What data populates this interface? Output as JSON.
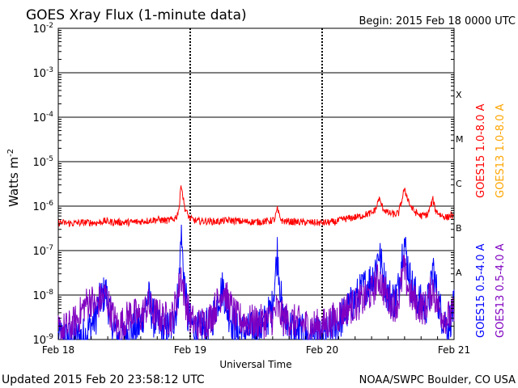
{
  "chart_data": {
    "type": "line",
    "title": "GOES Xray Flux (1-minute data)",
    "begin_label": "Begin:  2015 Feb 18 0000 UTC",
    "xlabel": "Universal Time",
    "ylabel": "Watts m",
    "ylabel_superscript": "-2",
    "y_scale": "log",
    "ylim": [
      1e-09,
      0.01
    ],
    "y_ticks": [
      {
        "value": 1e-09,
        "base": "10",
        "exp": "-9"
      },
      {
        "value": 1e-08,
        "base": "10",
        "exp": "-8"
      },
      {
        "value": 1e-07,
        "base": "10",
        "exp": "-7"
      },
      {
        "value": 1e-06,
        "base": "10",
        "exp": "-6"
      },
      {
        "value": 1e-05,
        "base": "10",
        "exp": "-5"
      },
      {
        "value": 0.0001,
        "base": "10",
        "exp": "-4"
      },
      {
        "value": 0.001,
        "base": "10",
        "exp": "-3"
      },
      {
        "value": 0.01,
        "base": "10",
        "exp": "-2"
      }
    ],
    "x_range_days": [
      0,
      3
    ],
    "x_ticks": [
      {
        "day": 0,
        "label": "Feb 18"
      },
      {
        "day": 1,
        "label": "Feb 19"
      },
      {
        "day": 2,
        "label": "Feb 20"
      },
      {
        "day": 3,
        "label": "Feb 21"
      }
    ],
    "class_labels": [
      {
        "label": "X",
        "value": 0.00032
      },
      {
        "label": "M",
        "value": 3.2e-05
      },
      {
        "label": "C",
        "value": 3.2e-06
      },
      {
        "label": "B",
        "value": 3.2e-07
      },
      {
        "label": "A",
        "value": 3.2e-08
      }
    ],
    "series": [
      {
        "name": "GOES15 1.0-8.0 A",
        "color": "#ff0000",
        "noise": 0.08,
        "min": 3e-07,
        "points": [
          [
            0.0,
            4.3e-07
          ],
          [
            0.1,
            4.1e-07
          ],
          [
            0.2,
            4.3e-07
          ],
          [
            0.3,
            4.2e-07
          ],
          [
            0.35,
            4.6e-07
          ],
          [
            0.4,
            4.4e-07
          ],
          [
            0.5,
            4.3e-07
          ],
          [
            0.6,
            4.4e-07
          ],
          [
            0.7,
            4.8e-07
          ],
          [
            0.75,
            5e-07
          ],
          [
            0.82,
            4.7e-07
          ],
          [
            0.87,
            5e-07
          ],
          [
            0.9,
            6e-07
          ],
          [
            0.92,
            1.1e-06
          ],
          [
            0.93,
            3.5e-06
          ],
          [
            0.945,
            1.6e-06
          ],
          [
            0.96,
            9e-07
          ],
          [
            0.98,
            6.5e-07
          ],
          [
            1.0,
            5.2e-07
          ],
          [
            1.05,
            4.6e-07
          ],
          [
            1.1,
            4.6e-07
          ],
          [
            1.2,
            4.5e-07
          ],
          [
            1.3,
            4.8e-07
          ],
          [
            1.4,
            4.5e-07
          ],
          [
            1.5,
            4.4e-07
          ],
          [
            1.6,
            4.6e-07
          ],
          [
            1.64,
            5e-07
          ],
          [
            1.66,
            8.5e-07
          ],
          [
            1.68,
            5.5e-07
          ],
          [
            1.7,
            4.6e-07
          ],
          [
            1.8,
            4.4e-07
          ],
          [
            1.9,
            4.3e-07
          ],
          [
            2.0,
            4.2e-07
          ],
          [
            2.1,
            4.4e-07
          ],
          [
            2.15,
            5e-07
          ],
          [
            2.2,
            5.3e-07
          ],
          [
            2.28,
            5.8e-07
          ],
          [
            2.33,
            6.5e-07
          ],
          [
            2.38,
            7e-07
          ],
          [
            2.41,
            9e-07
          ],
          [
            2.43,
            1.5e-06
          ],
          [
            2.46,
            9e-07
          ],
          [
            2.5,
            7e-07
          ],
          [
            2.55,
            6.5e-07
          ],
          [
            2.58,
            7e-07
          ],
          [
            2.61,
            1.6e-06
          ],
          [
            2.62,
            2.3e-06
          ],
          [
            2.64,
            1.8e-06
          ],
          [
            2.67,
            1e-06
          ],
          [
            2.7,
            7.5e-07
          ],
          [
            2.75,
            6e-07
          ],
          [
            2.8,
            6.5e-07
          ],
          [
            2.84,
            1.4e-06
          ],
          [
            2.86,
            8e-07
          ],
          [
            2.9,
            6.2e-07
          ],
          [
            2.95,
            5.5e-07
          ],
          [
            2.98,
            6.5e-07
          ],
          [
            3.0,
            5e-07
          ]
        ]
      },
      {
        "name": "GOES13 1.0-8.0 A",
        "color": "#ffa500",
        "points": []
      },
      {
        "name": "GOES15 0.5-4.0 A",
        "color": "#0000ff",
        "noise": 0.45,
        "min": 1e-09,
        "points": [
          [
            0.0,
            1.1e-09
          ],
          [
            0.1,
            1e-09
          ],
          [
            0.2,
            1.2e-09
          ],
          [
            0.28,
            3e-09
          ],
          [
            0.32,
            8e-09
          ],
          [
            0.36,
            1.2e-08
          ],
          [
            0.4,
            3e-09
          ],
          [
            0.45,
            1e-09
          ],
          [
            0.55,
            1.5e-09
          ],
          [
            0.62,
            2e-09
          ],
          [
            0.68,
            1e-08
          ],
          [
            0.72,
            3e-09
          ],
          [
            0.8,
            1.5e-09
          ],
          [
            0.86,
            2e-09
          ],
          [
            0.9,
            6e-09
          ],
          [
            0.92,
            3e-08
          ],
          [
            0.93,
            3e-07
          ],
          [
            0.94,
            9e-08
          ],
          [
            0.96,
            1.5e-08
          ],
          [
            0.98,
            3e-09
          ],
          [
            1.05,
            1.5e-09
          ],
          [
            1.15,
            2e-09
          ],
          [
            1.22,
            1e-08
          ],
          [
            1.25,
            1.5e-08
          ],
          [
            1.28,
            5e-09
          ],
          [
            1.35,
            1.5e-09
          ],
          [
            1.45,
            1.5e-09
          ],
          [
            1.55,
            2e-09
          ],
          [
            1.62,
            5e-09
          ],
          [
            1.65,
            4e-08
          ],
          [
            1.66,
            1e-07
          ],
          [
            1.68,
            2e-08
          ],
          [
            1.7,
            3e-09
          ],
          [
            1.8,
            1.5e-09
          ],
          [
            1.9,
            1.2e-09
          ],
          [
            2.0,
            1e-09
          ],
          [
            2.1,
            2e-09
          ],
          [
            2.18,
            4e-09
          ],
          [
            2.25,
            8e-09
          ],
          [
            2.32,
            1.5e-08
          ],
          [
            2.38,
            2.5e-08
          ],
          [
            2.41,
            5e-08
          ],
          [
            2.43,
            1e-07
          ],
          [
            2.46,
            3e-08
          ],
          [
            2.5,
            1e-08
          ],
          [
            2.55,
            8e-09
          ],
          [
            2.58,
            1.5e-08
          ],
          [
            2.6,
            6e-08
          ],
          [
            2.62,
            1.9e-07
          ],
          [
            2.64,
            7e-08
          ],
          [
            2.67,
            2e-08
          ],
          [
            2.72,
            8e-09
          ],
          [
            2.78,
            5e-09
          ],
          [
            2.82,
            1e-08
          ],
          [
            2.84,
            5e-08
          ],
          [
            2.86,
            1.5e-08
          ],
          [
            2.9,
            4e-09
          ],
          [
            2.95,
            2e-09
          ],
          [
            3.0,
            5e-09
          ]
        ]
      },
      {
        "name": "GOES13 0.5-4.0 A",
        "color": "#8000c0",
        "noise": 0.4,
        "min": 1e-09,
        "points": [
          [
            0.0,
            1.5e-09
          ],
          [
            0.1,
            2e-09
          ],
          [
            0.15,
            3e-09
          ],
          [
            0.2,
            6e-09
          ],
          [
            0.25,
            8e-09
          ],
          [
            0.28,
            5e-09
          ],
          [
            0.32,
            8e-09
          ],
          [
            0.36,
            1e-08
          ],
          [
            0.4,
            4e-09
          ],
          [
            0.45,
            2e-09
          ],
          [
            0.5,
            2.5e-09
          ],
          [
            0.55,
            4e-09
          ],
          [
            0.62,
            3e-09
          ],
          [
            0.68,
            6e-09
          ],
          [
            0.72,
            4e-09
          ],
          [
            0.8,
            3e-09
          ],
          [
            0.86,
            3e-09
          ],
          [
            0.9,
            8e-09
          ],
          [
            0.93,
            3e-08
          ],
          [
            0.94,
            2e-08
          ],
          [
            0.96,
            8e-09
          ],
          [
            1.0,
            3e-09
          ],
          [
            1.05,
            2e-09
          ],
          [
            1.15,
            3e-09
          ],
          [
            1.22,
            8e-09
          ],
          [
            1.25,
            1.5e-08
          ],
          [
            1.28,
            8e-09
          ],
          [
            1.35,
            3e-09
          ],
          [
            1.45,
            2.5e-09
          ],
          [
            1.55,
            2.5e-09
          ],
          [
            1.62,
            3e-09
          ],
          [
            1.66,
            5e-09
          ],
          [
            1.7,
            3e-09
          ],
          [
            1.8,
            2.5e-09
          ],
          [
            1.9,
            2e-09
          ],
          [
            2.0,
            2e-09
          ],
          [
            2.1,
            3e-09
          ],
          [
            2.18,
            5e-09
          ],
          [
            2.25,
            6e-09
          ],
          [
            2.32,
            8e-09
          ],
          [
            2.38,
            1.2e-08
          ],
          [
            2.43,
            2.5e-08
          ],
          [
            2.46,
            1.5e-08
          ],
          [
            2.5,
            8e-09
          ],
          [
            2.55,
            6e-09
          ],
          [
            2.58,
            8e-09
          ],
          [
            2.62,
            4e-08
          ],
          [
            2.64,
            2e-08
          ],
          [
            2.67,
            1e-08
          ],
          [
            2.72,
            6e-09
          ],
          [
            2.78,
            5e-09
          ],
          [
            2.84,
            1.5e-08
          ],
          [
            2.86,
            8e-09
          ],
          [
            2.9,
            4e-09
          ],
          [
            2.95,
            3e-09
          ],
          [
            3.0,
            4e-09
          ]
        ]
      }
    ]
  },
  "footer": {
    "updated": "Updated 2015 Feb 20 23:58:12 UTC",
    "credit": "NOAA/SWPC Boulder, CO USA"
  }
}
